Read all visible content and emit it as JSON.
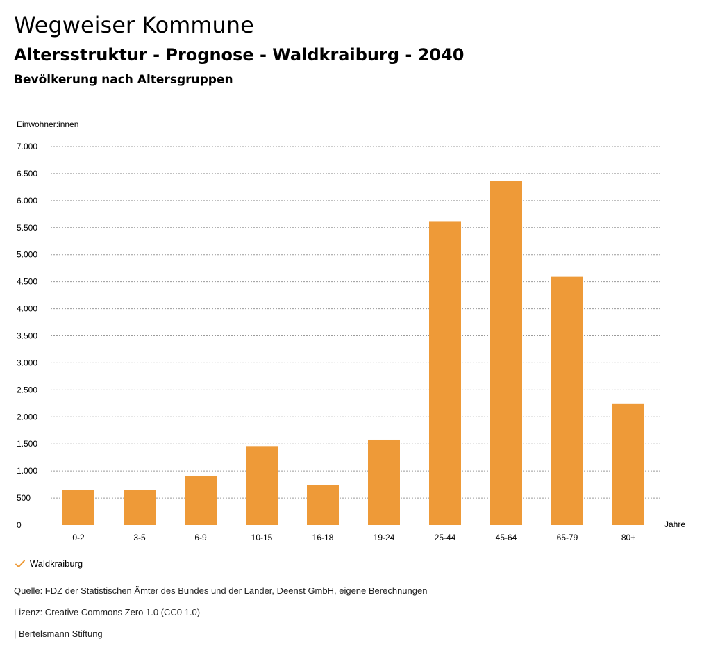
{
  "header": {
    "title": "Wegweiser Kommune",
    "subtitle": "Altersstruktur - Prognose - Waldkraiburg - 2040",
    "chart_heading": "Bevölkerung nach Altersgruppen"
  },
  "colors": {
    "bar": "#EE9A38",
    "grid": "#9a9a9a",
    "text": "#000000"
  },
  "chart_data": {
    "type": "bar",
    "ylabel": "Einwohner:innen",
    "xlabel": "Jahre",
    "ylim": [
      0,
      7000
    ],
    "yticks": [
      0,
      500,
      1000,
      1500,
      2000,
      2500,
      3000,
      3500,
      4000,
      4500,
      5000,
      5500,
      6000,
      6500,
      7000
    ],
    "ytick_labels": [
      "0",
      "500",
      "1.000",
      "1.500",
      "2.000",
      "2.500",
      "3.000",
      "3.500",
      "4.000",
      "4.500",
      "5.000",
      "5.500",
      "6.000",
      "6.500",
      "7.000"
    ],
    "grid": true,
    "categories": [
      "0-2",
      "3-5",
      "6-9",
      "10-15",
      "16-18",
      "19-24",
      "25-44",
      "45-64",
      "65-79",
      "80+"
    ],
    "series": [
      {
        "name": "Waldkraiburg",
        "values": [
          650,
          650,
          910,
          1460,
          740,
          1580,
          5620,
          6370,
          4590,
          2250
        ]
      }
    ],
    "legend_position": "bottom-left"
  },
  "footer": {
    "source": "Quelle: FDZ der Statistischen Ämter des Bundes und der Länder, Deenst GmbH, eigene Berechnungen",
    "license": "Lizenz: Creative Commons Zero 1.0 (CC0 1.0)",
    "credit": "| Bertelsmann Stiftung"
  }
}
